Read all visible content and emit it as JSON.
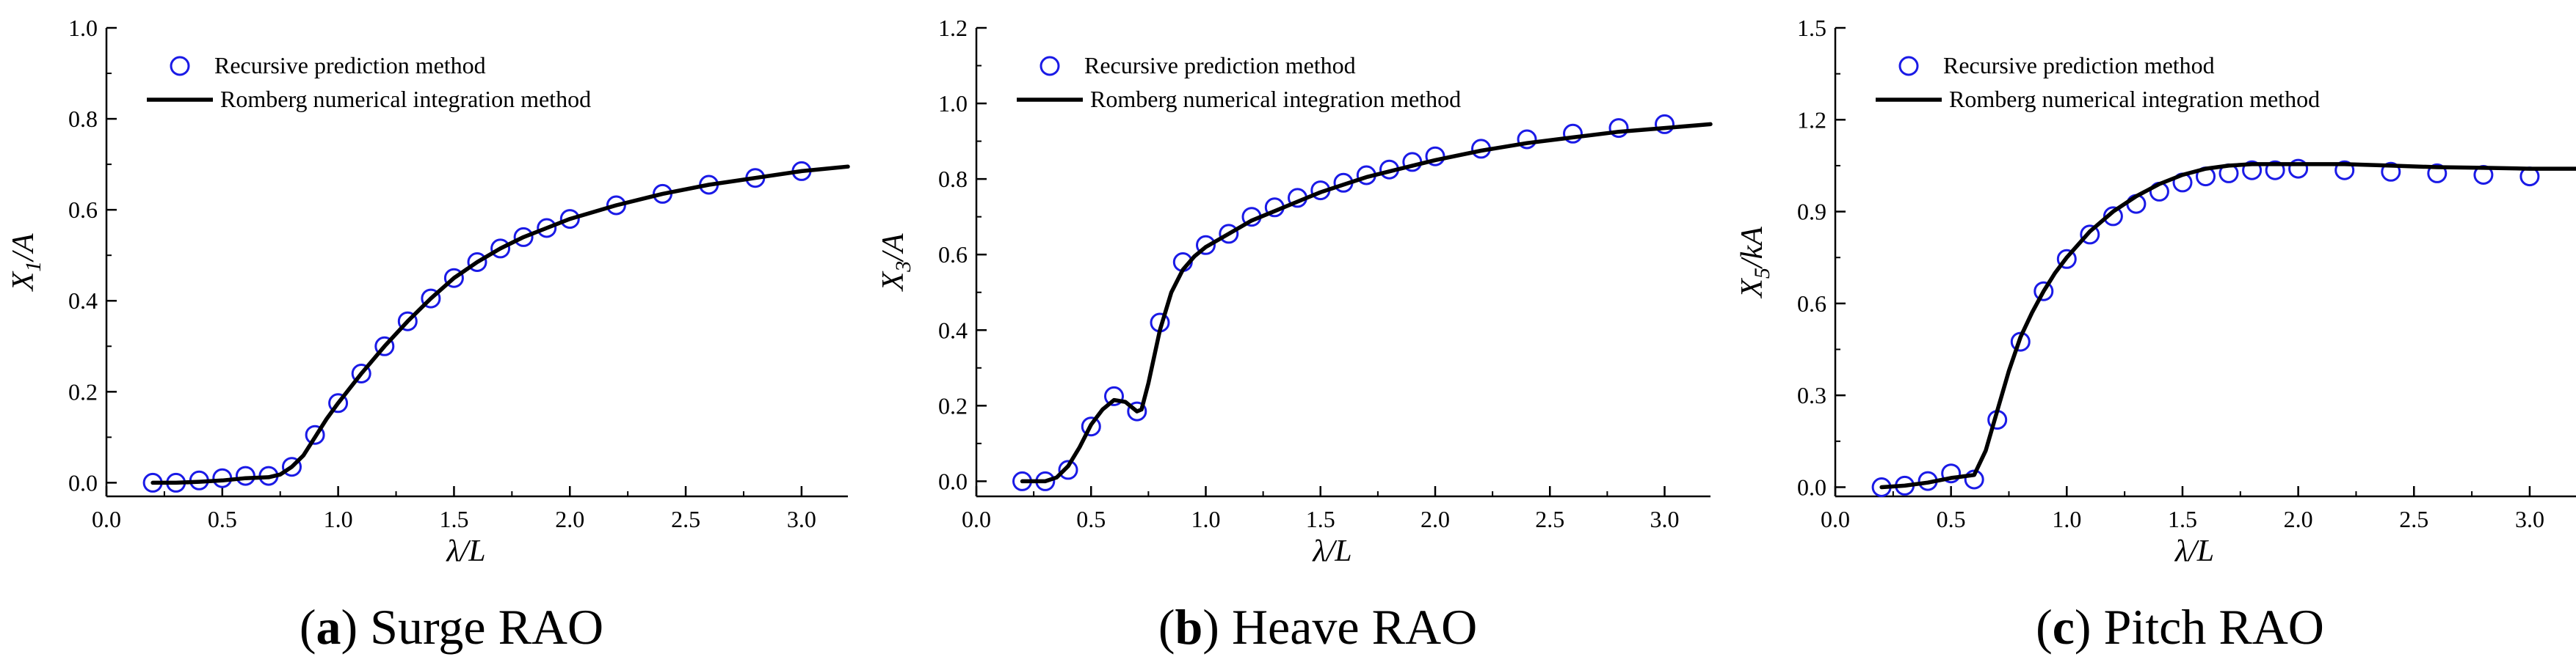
{
  "colors": {
    "marker": "#1a1ae6",
    "line": "#000000",
    "axis": "#000000"
  },
  "legend": {
    "marker_label": "Recursive prediction method",
    "line_label": "Romberg numerical integration method"
  },
  "chart_data": [
    {
      "type": "line",
      "panel": "a",
      "caption_letter": "a",
      "caption_text": " Surge RAO",
      "caption_open": "(",
      "caption_close": ")",
      "title": "Surge RAO",
      "xlabel": "λ/L",
      "ylabel": "X1/A",
      "ylabel_main": "X",
      "ylabel_sub": "1",
      "ylabel_tail": "/A",
      "xlim": [
        0.0,
        3.2
      ],
      "ylim": [
        -0.03,
        1.0
      ],
      "xticks": [
        0.0,
        0.5,
        1.0,
        1.5,
        2.0,
        2.5,
        3.0
      ],
      "yticks": [
        0.0,
        0.2,
        0.4,
        0.6,
        0.8,
        1.0
      ],
      "xtick_labels": [
        "0.0",
        "0.5",
        "1.0",
        "1.5",
        "2.0",
        "2.5",
        "3.0"
      ],
      "ytick_labels": [
        "0.0",
        "0.2",
        "0.4",
        "0.6",
        "0.8",
        "1.0"
      ],
      "legend_position": "top-left",
      "series": [
        {
          "name": "Recursive prediction method",
          "style": "markers",
          "x": [
            0.2,
            0.3,
            0.4,
            0.5,
            0.6,
            0.7,
            0.8,
            0.9,
            1.0,
            1.1,
            1.2,
            1.3,
            1.4,
            1.5,
            1.6,
            1.7,
            1.8,
            1.9,
            2.0,
            2.2,
            2.4,
            2.6,
            2.8,
            3.0
          ],
          "y": [
            0.0,
            0.0,
            0.005,
            0.01,
            0.015,
            0.015,
            0.035,
            0.105,
            0.175,
            0.24,
            0.3,
            0.355,
            0.405,
            0.45,
            0.485,
            0.515,
            0.54,
            0.56,
            0.58,
            0.61,
            0.635,
            0.655,
            0.67,
            0.685
          ]
        },
        {
          "name": "Romberg numerical integration method",
          "style": "line",
          "x": [
            0.2,
            0.3,
            0.4,
            0.5,
            0.6,
            0.7,
            0.75,
            0.8,
            0.85,
            0.9,
            0.95,
            1.0,
            1.1,
            1.2,
            1.3,
            1.4,
            1.5,
            1.6,
            1.7,
            1.8,
            1.9,
            2.0,
            2.2,
            2.4,
            2.6,
            2.8,
            3.0,
            3.2
          ],
          "y": [
            0.0,
            0.0,
            0.002,
            0.005,
            0.01,
            0.012,
            0.018,
            0.035,
            0.06,
            0.1,
            0.14,
            0.175,
            0.24,
            0.3,
            0.355,
            0.405,
            0.45,
            0.485,
            0.515,
            0.54,
            0.56,
            0.58,
            0.61,
            0.635,
            0.655,
            0.67,
            0.685,
            0.695
          ]
        }
      ]
    },
    {
      "type": "line",
      "panel": "b",
      "caption_letter": "b",
      "caption_text": " Heave RAO",
      "caption_open": "(",
      "caption_close": ")",
      "title": "Heave RAO",
      "xlabel": "λ/L",
      "ylabel": "X3/A",
      "ylabel_main": "X",
      "ylabel_sub": "3",
      "ylabel_tail": "/A",
      "xlim": [
        0.0,
        3.2
      ],
      "ylim": [
        -0.04,
        1.2
      ],
      "xticks": [
        0.0,
        0.5,
        1.0,
        1.5,
        2.0,
        2.5,
        3.0
      ],
      "yticks": [
        0.0,
        0.2,
        0.4,
        0.6,
        0.8,
        1.0,
        1.2
      ],
      "xtick_labels": [
        "0.0",
        "0.5",
        "1.0",
        "1.5",
        "2.0",
        "2.5",
        "3.0"
      ],
      "ytick_labels": [
        "0.0",
        "0.2",
        "0.4",
        "0.6",
        "0.8",
        "1.0",
        "1.2"
      ],
      "legend_position": "top-left",
      "series": [
        {
          "name": "Recursive prediction method",
          "style": "markers",
          "x": [
            0.2,
            0.3,
            0.4,
            0.5,
            0.6,
            0.7,
            0.8,
            0.9,
            1.0,
            1.1,
            1.2,
            1.3,
            1.4,
            1.5,
            1.6,
            1.7,
            1.8,
            1.9,
            2.0,
            2.2,
            2.4,
            2.6,
            2.8,
            3.0
          ],
          "y": [
            0.0,
            0.0,
            0.03,
            0.145,
            0.225,
            0.185,
            0.42,
            0.58,
            0.625,
            0.655,
            0.7,
            0.725,
            0.75,
            0.77,
            0.79,
            0.81,
            0.825,
            0.845,
            0.86,
            0.88,
            0.905,
            0.92,
            0.935,
            0.945
          ]
        },
        {
          "name": "Romberg numerical integration method",
          "style": "line",
          "x": [
            0.2,
            0.3,
            0.35,
            0.4,
            0.45,
            0.5,
            0.55,
            0.6,
            0.65,
            0.7,
            0.72,
            0.75,
            0.8,
            0.85,
            0.9,
            0.95,
            1.0,
            1.1,
            1.2,
            1.3,
            1.4,
            1.5,
            1.6,
            1.7,
            1.8,
            1.9,
            2.0,
            2.2,
            2.4,
            2.6,
            2.8,
            3.0,
            3.2
          ],
          "y": [
            0.0,
            0.0,
            0.01,
            0.04,
            0.09,
            0.15,
            0.19,
            0.215,
            0.21,
            0.185,
            0.19,
            0.26,
            0.4,
            0.5,
            0.56,
            0.595,
            0.62,
            0.655,
            0.69,
            0.715,
            0.74,
            0.765,
            0.785,
            0.805,
            0.82,
            0.835,
            0.85,
            0.875,
            0.895,
            0.91,
            0.925,
            0.935,
            0.945
          ]
        }
      ]
    },
    {
      "type": "line",
      "panel": "c",
      "caption_letter": "c",
      "caption_text": " Pitch RAO",
      "caption_open": "(",
      "caption_close": ")",
      "title": "Pitch RAO",
      "xlabel": "λ/L",
      "ylabel": "X5/kA",
      "ylabel_main": "X",
      "ylabel_sub": "5",
      "ylabel_tail": "/kA",
      "xlim": [
        0.0,
        3.2
      ],
      "ylim": [
        -0.03,
        1.5
      ],
      "xticks": [
        0.0,
        0.5,
        1.0,
        1.5,
        2.0,
        2.5,
        3.0
      ],
      "yticks": [
        0.0,
        0.3,
        0.6,
        0.9,
        1.2,
        1.5
      ],
      "xtick_labels": [
        "0.0",
        "0.5",
        "1.0",
        "1.5",
        "2.0",
        "2.5",
        "3.0"
      ],
      "ytick_labels": [
        "0.0",
        "0.3",
        "0.6",
        "0.9",
        "1.2",
        "1.5"
      ],
      "legend_position": "top-left",
      "series": [
        {
          "name": "Recursive prediction method",
          "style": "markers",
          "x": [
            0.2,
            0.3,
            0.4,
            0.5,
            0.6,
            0.7,
            0.8,
            0.9,
            1.0,
            1.1,
            1.2,
            1.3,
            1.4,
            1.5,
            1.6,
            1.7,
            1.8,
            1.9,
            2.0,
            2.2,
            2.4,
            2.6,
            2.8,
            3.0
          ],
          "y": [
            0.0,
            0.005,
            0.02,
            0.045,
            0.025,
            0.22,
            0.475,
            0.64,
            0.745,
            0.825,
            0.885,
            0.925,
            0.965,
            0.995,
            1.015,
            1.025,
            1.035,
            1.035,
            1.04,
            1.035,
            1.03,
            1.025,
            1.02,
            1.015
          ]
        },
        {
          "name": "Romberg numerical integration method",
          "style": "line",
          "x": [
            0.2,
            0.3,
            0.4,
            0.5,
            0.55,
            0.6,
            0.65,
            0.7,
            0.75,
            0.8,
            0.85,
            0.9,
            0.95,
            1.0,
            1.1,
            1.2,
            1.3,
            1.4,
            1.5,
            1.6,
            1.7,
            1.8,
            1.9,
            2.0,
            2.2,
            2.4,
            2.6,
            2.8,
            3.0,
            3.2
          ],
          "y": [
            0.0,
            0.005,
            0.015,
            0.03,
            0.035,
            0.04,
            0.12,
            0.25,
            0.38,
            0.49,
            0.57,
            0.64,
            0.7,
            0.75,
            0.835,
            0.9,
            0.95,
            0.99,
            1.02,
            1.04,
            1.05,
            1.055,
            1.055,
            1.055,
            1.055,
            1.05,
            1.045,
            1.043,
            1.04,
            1.04
          ]
        }
      ]
    }
  ]
}
